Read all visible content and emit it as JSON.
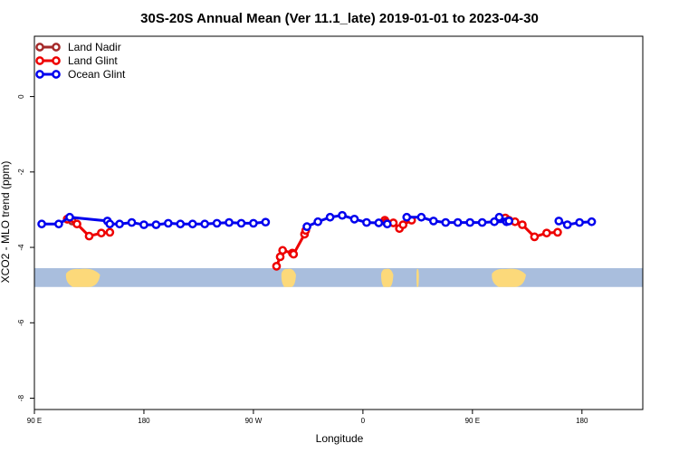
{
  "chart_data": {
    "type": "line",
    "title": "30S-20S Annual Mean (Ver 11.1_late)   2019-01-01 to 2023-04-30",
    "xlabel": "Longitude",
    "ylabel": "XCO2 - MLO trend (ppm)",
    "xlim": [
      90,
      590
    ],
    "ylim": [
      -8.3,
      1.6
    ],
    "x_ticks": [
      {
        "value": 90,
        "label": "90 E"
      },
      {
        "value": 180,
        "label": "180"
      },
      {
        "value": 270,
        "label": "90 W"
      },
      {
        "value": 360,
        "label": "0"
      },
      {
        "value": 450,
        "label": "90 E"
      },
      {
        "value": 540,
        "label": "180"
      }
    ],
    "y_ticks": [
      {
        "value": 0,
        "label": "0"
      },
      {
        "value": -2,
        "label": "-2"
      },
      {
        "value": -4,
        "label": "-4"
      },
      {
        "value": -6,
        "label": "-6"
      },
      {
        "value": -8,
        "label": "-8"
      }
    ],
    "legend_position": "top-left",
    "map_band": {
      "y_top": -4.55,
      "y_bottom": -5.05,
      "ocean_color": "#a9bedd",
      "land_color": "#fcd97a"
    },
    "series": [
      {
        "name": "Land Nadir",
        "color": "#a52a2a",
        "points": [
          [
            117,
            -3.25
          ],
          [
            121,
            -3.3
          ]
        ]
      },
      {
        "name": "Land Glint",
        "color": "#ee0000",
        "segments": [
          [
            [
              117,
              -3.25
            ],
            [
              125,
              -3.38
            ],
            [
              135,
              -3.7
            ],
            [
              145,
              -3.62
            ],
            [
              152,
              -3.6
            ]
          ],
          [
            [
              289,
              -4.5
            ],
            [
              292,
              -4.25
            ],
            [
              294,
              -4.08
            ],
            [
              302,
              -4.15
            ],
            [
              303,
              -4.18
            ],
            [
              312,
              -3.65
            ],
            [
              313,
              -3.55
            ]
          ],
          [
            [
              378,
              -3.28
            ],
            [
              379,
              -3.33
            ],
            [
              385,
              -3.35
            ],
            [
              390,
              -3.5
            ],
            [
              393,
              -3.4
            ],
            [
              400,
              -3.28
            ]
          ],
          [
            [
              477,
              -3.22
            ],
            [
              480,
              -3.28
            ],
            [
              485,
              -3.32
            ],
            [
              491,
              -3.4
            ],
            [
              501,
              -3.72
            ],
            [
              511,
              -3.62
            ],
            [
              520,
              -3.6
            ]
          ]
        ]
      },
      {
        "name": "Ocean Glint",
        "color": "#0000ee",
        "segments": [
          [
            [
              96,
              -3.38
            ],
            [
              110,
              -3.38
            ],
            [
              119,
              -3.2
            ],
            [
              150,
              -3.3
            ]
          ],
          [
            [
              152,
              -3.38
            ],
            [
              160,
              -3.38
            ],
            [
              170,
              -3.34
            ],
            [
              180,
              -3.4
            ],
            [
              190,
              -3.4
            ],
            [
              200,
              -3.36
            ],
            [
              210,
              -3.38
            ],
            [
              220,
              -3.38
            ],
            [
              230,
              -3.38
            ],
            [
              240,
              -3.36
            ],
            [
              250,
              -3.34
            ],
            [
              260,
              -3.36
            ],
            [
              270,
              -3.36
            ],
            [
              280,
              -3.33
            ]
          ],
          [
            [
              314,
              -3.45
            ],
            [
              323,
              -3.32
            ],
            [
              333,
              -3.2
            ],
            [
              343,
              -3.15
            ],
            [
              353,
              -3.25
            ],
            [
              363,
              -3.34
            ],
            [
              373,
              -3.35
            ],
            [
              380,
              -3.38
            ]
          ],
          [
            [
              396,
              -3.2
            ],
            [
              408,
              -3.2
            ],
            [
              418,
              -3.3
            ],
            [
              428,
              -3.34
            ],
            [
              438,
              -3.34
            ],
            [
              448,
              -3.34
            ],
            [
              458,
              -3.34
            ],
            [
              468,
              -3.32
            ],
            [
              478,
              -3.32
            ]
          ],
          [
            [
              472,
              -3.2
            ],
            [
              480,
              -3.3
            ]
          ],
          [
            [
              521,
              -3.3
            ],
            [
              528,
              -3.4
            ],
            [
              538,
              -3.34
            ],
            [
              548,
              -3.32
            ]
          ]
        ]
      }
    ]
  }
}
